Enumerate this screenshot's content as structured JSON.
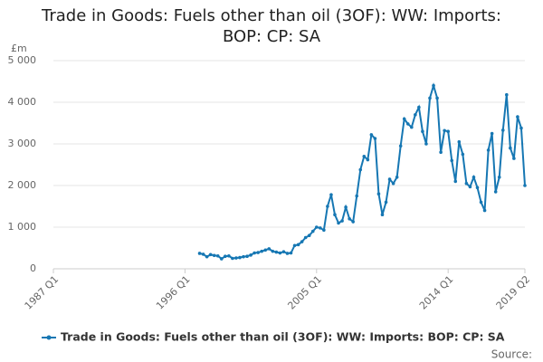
{
  "chart_data": {
    "type": "line",
    "title": "Trade in Goods: Fuels other than oil (3OF): WW: Imports: BOP: CP: SA",
    "y_unit": "£m",
    "source": "Source:",
    "categories": [
      "1987 Q1",
      null,
      null,
      null,
      null,
      null,
      null,
      null,
      null,
      null,
      null,
      null,
      null,
      null,
      null,
      null,
      null,
      null,
      null,
      null,
      null,
      null,
      null,
      null,
      null,
      null,
      null,
      null,
      null,
      null,
      null,
      null,
      null,
      null,
      null,
      null,
      "1996 Q1",
      null,
      null,
      null,
      null,
      null,
      null,
      null,
      null,
      null,
      null,
      null,
      null,
      null,
      null,
      null,
      null,
      null,
      null,
      null,
      null,
      null,
      null,
      null,
      null,
      null,
      null,
      null,
      null,
      null,
      null,
      null,
      null,
      null,
      null,
      null,
      "2005 Q1",
      null,
      null,
      null,
      null,
      null,
      null,
      null,
      null,
      null,
      null,
      null,
      null,
      null,
      null,
      null,
      null,
      null,
      null,
      null,
      null,
      null,
      null,
      null,
      null,
      null,
      null,
      null,
      null,
      null,
      null,
      null,
      null,
      null,
      null,
      null,
      "2014 Q1",
      null,
      null,
      null,
      null,
      null,
      null,
      null,
      null,
      null,
      null,
      null,
      null,
      null,
      null,
      null,
      null,
      null,
      null,
      null,
      null,
      "2019 Q2"
    ],
    "series": [
      {
        "name": "Trade in Goods: Fuels other than oil (3OF): WW: Imports: BOP: CP: SA",
        "color": "#1677b3",
        "values": [
          null,
          null,
          null,
          null,
          null,
          null,
          null,
          null,
          null,
          null,
          null,
          null,
          null,
          null,
          null,
          null,
          null,
          null,
          null,
          null,
          null,
          null,
          null,
          null,
          null,
          null,
          null,
          null,
          null,
          null,
          null,
          null,
          null,
          null,
          null,
          null,
          null,
          null,
          null,
          null,
          370,
          350,
          290,
          340,
          320,
          310,
          240,
          300,
          310,
          250,
          260,
          270,
          290,
          300,
          330,
          380,
          390,
          420,
          450,
          480,
          420,
          400,
          380,
          410,
          370,
          380,
          560,
          580,
          650,
          750,
          800,
          900,
          1000,
          980,
          930,
          1500,
          1780,
          1300,
          1100,
          1150,
          1480,
          1200,
          1130,
          1750,
          2380,
          2700,
          2620,
          3220,
          3130,
          1800,
          1300,
          1600,
          2150,
          2050,
          2200,
          2950,
          3600,
          3480,
          3400,
          3700,
          3880,
          3300,
          3000,
          4100,
          4400,
          4100,
          2800,
          3320,
          3300,
          2600,
          2100,
          3050,
          2750,
          2050,
          1970,
          2200,
          1950,
          1600,
          1400,
          2850,
          3250,
          1850,
          2200,
          3330,
          4180,
          2900,
          2650,
          3650,
          3380,
          2000
        ]
      }
    ],
    "ylim": [
      0,
      5000
    ],
    "yticks": [
      0,
      {
        "value": 1000,
        "label": "1 000"
      },
      {
        "value": 2000,
        "label": "2 000"
      },
      {
        "value": 3000,
        "label": "3 000"
      },
      {
        "value": 4000,
        "label": "4 000"
      },
      {
        "value": 5000,
        "label": "5 000"
      }
    ],
    "grid": true
  }
}
